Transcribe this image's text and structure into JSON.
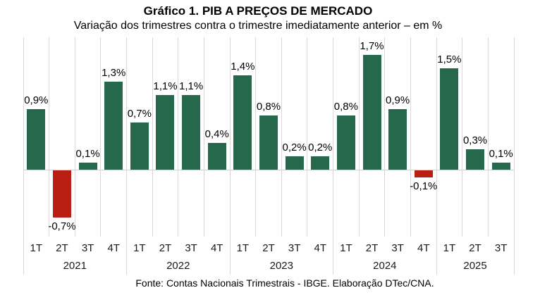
{
  "title": "Gráfico 1. PIB A PREÇOS DE MERCADO",
  "subtitle": "Variação dos trimestres contra o trimestre imediatamente anterior – em %",
  "footer": "Fonte: Contas Nacionais Trimestrais - IBGE. Elaboração DTec/CNA.",
  "colors": {
    "positive_bar": "#26684B",
    "negative_bar": "#B91E12",
    "gridline": "#D9D9D9",
    "baseline": "#D0D0D0",
    "text": "#000000"
  },
  "chart_data": {
    "type": "bar",
    "title": "Gráfico 1. PIB A PREÇOS DE MERCADO",
    "subtitle": "Variação dos trimestres contra o trimestre imediatamente anterior – em %",
    "unit": "%",
    "ylim": [
      -1,
      2
    ],
    "legend": "none",
    "grid": "vertical category separators; y-axis hidden; zero baseline shown",
    "bar_colors": {
      "positive": "#26684B",
      "negative": "#B91E12"
    },
    "categories": [
      "1T 2021",
      "2T 2021",
      "3T 2021",
      "4T 2021",
      "1T 2022",
      "2T 2022",
      "3T 2022",
      "4T 2022",
      "1T 2023",
      "2T 2023",
      "3T 2023",
      "4T 2023",
      "1T 2024",
      "2T 2024",
      "3T 2024",
      "4T 2024",
      "1T 2025",
      "2T 2025",
      "3T 2025"
    ],
    "values": [
      0.9,
      -0.7,
      0.1,
      1.3,
      0.7,
      1.1,
      1.1,
      0.4,
      1.4,
      0.8,
      0.2,
      0.2,
      0.8,
      1.7,
      0.9,
      -0.1,
      1.5,
      0.3,
      0.1
    ],
    "groups": [
      {
        "year": "2021",
        "quarters": [
          "1T",
          "2T",
          "3T",
          "4T"
        ],
        "values": [
          0.9,
          -0.7,
          0.1,
          1.3
        ],
        "labels": [
          "0,9%",
          "-0,7%",
          "0,1%",
          "1,3%"
        ]
      },
      {
        "year": "2022",
        "quarters": [
          "1T",
          "2T",
          "3T",
          "4T"
        ],
        "values": [
          0.7,
          1.1,
          1.1,
          0.4
        ],
        "labels": [
          "0,7%",
          "1,1%",
          "1,1%",
          "0,4%"
        ]
      },
      {
        "year": "2023",
        "quarters": [
          "1T",
          "2T",
          "3T",
          "4T"
        ],
        "values": [
          1.4,
          0.8,
          0.2,
          0.2
        ],
        "labels": [
          "1,4%",
          "0,8%",
          "0,2%",
          "0,2%"
        ]
      },
      {
        "year": "2024",
        "quarters": [
          "1T",
          "2T",
          "3T",
          "4T"
        ],
        "values": [
          0.8,
          1.7,
          0.9,
          -0.1
        ],
        "labels": [
          "0,8%",
          "1,7%",
          "0,9%",
          "-0,1%"
        ]
      },
      {
        "year": "2025",
        "quarters": [
          "1T",
          "2T",
          "3T"
        ],
        "values": [
          1.5,
          0.3,
          0.1
        ],
        "labels": [
          "1,5%",
          "0,3%",
          "0,1%"
        ]
      }
    ]
  }
}
